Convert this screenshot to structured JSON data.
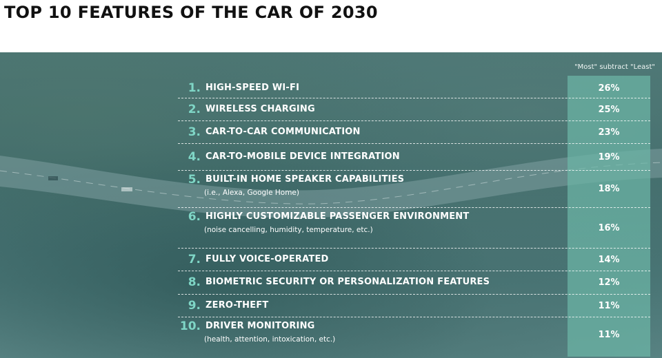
{
  "title": "TOP 10 FEATURES OF THE CAR OF 2030",
  "column_header": "\"Most\" subtract \"Least\"",
  "colors": {
    "title": "#111111",
    "number": "#7fd6c6",
    "column_fill": "#6cb6a6",
    "text": "#ffffff"
  },
  "chart_data": {
    "type": "table",
    "title": "TOP 10 FEATURES OF THE CAR OF 2030",
    "value_header": "\"Most\" subtract \"Least\"",
    "rows": [
      {
        "rank": "1.",
        "feature": "HIGH-SPEED WI-FI",
        "note": "",
        "value": "26%"
      },
      {
        "rank": "2.",
        "feature": "WIRELESS CHARGING",
        "note": "",
        "value": "25%"
      },
      {
        "rank": "3.",
        "feature": "CAR-TO-CAR COMMUNICATION",
        "note": "",
        "value": "23%"
      },
      {
        "rank": "4.",
        "feature": "CAR-TO-MOBILE DEVICE INTEGRATION",
        "note": "",
        "value": "19%"
      },
      {
        "rank": "5.",
        "feature": "BUILT-IN HOME SPEAKER CAPABILITIES",
        "note": "(i.e., Alexa, Google Home)",
        "value": "18%"
      },
      {
        "rank": "6.",
        "feature": "HIGHLY CUSTOMIZABLE PASSENGER ENVIRONMENT",
        "note": "(noise cancelling, humidity, temperature, etc.)",
        "value": "16%"
      },
      {
        "rank": "7.",
        "feature": "FULLY VOICE-OPERATED",
        "note": "",
        "value": "14%"
      },
      {
        "rank": "8.",
        "feature": "BIOMETRIC SECURITY OR PERSONALIZATION FEATURES",
        "note": "",
        "value": "12%"
      },
      {
        "rank": "9.",
        "feature": "ZERO-THEFT",
        "note": "",
        "value": "11%"
      },
      {
        "rank": "10.",
        "feature": "DRIVER MONITORING",
        "note": "(health, attention, intoxication, etc.)",
        "value": "11%"
      }
    ]
  }
}
